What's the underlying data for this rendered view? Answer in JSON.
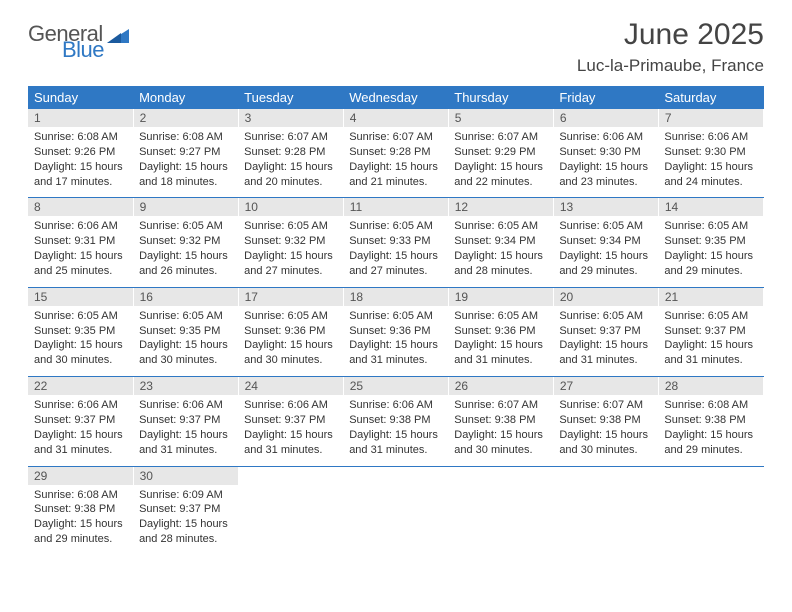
{
  "logo": {
    "general": "General",
    "blue": "Blue"
  },
  "title": "June 2025",
  "location": "Luc-la-Primaube, France",
  "colors": {
    "header_bg": "#2f78c4",
    "header_text": "#ffffff",
    "daynum_bg": "#e7e7e7",
    "text": "#333333",
    "logo_gray": "#555555",
    "logo_blue": "#2f78c4",
    "page_bg": "#ffffff"
  },
  "typography": {
    "title_fontsize": 30,
    "location_fontsize": 17,
    "dow_fontsize": 13,
    "daynum_fontsize": 12,
    "detail_fontsize": 11
  },
  "dow": [
    "Sunday",
    "Monday",
    "Tuesday",
    "Wednesday",
    "Thursday",
    "Friday",
    "Saturday"
  ],
  "weeks": [
    [
      {
        "n": "1",
        "sr": "Sunrise: 6:08 AM",
        "ss": "Sunset: 9:26 PM",
        "d1": "Daylight: 15 hours",
        "d2": "and 17 minutes."
      },
      {
        "n": "2",
        "sr": "Sunrise: 6:08 AM",
        "ss": "Sunset: 9:27 PM",
        "d1": "Daylight: 15 hours",
        "d2": "and 18 minutes."
      },
      {
        "n": "3",
        "sr": "Sunrise: 6:07 AM",
        "ss": "Sunset: 9:28 PM",
        "d1": "Daylight: 15 hours",
        "d2": "and 20 minutes."
      },
      {
        "n": "4",
        "sr": "Sunrise: 6:07 AM",
        "ss": "Sunset: 9:28 PM",
        "d1": "Daylight: 15 hours",
        "d2": "and 21 minutes."
      },
      {
        "n": "5",
        "sr": "Sunrise: 6:07 AM",
        "ss": "Sunset: 9:29 PM",
        "d1": "Daylight: 15 hours",
        "d2": "and 22 minutes."
      },
      {
        "n": "6",
        "sr": "Sunrise: 6:06 AM",
        "ss": "Sunset: 9:30 PM",
        "d1": "Daylight: 15 hours",
        "d2": "and 23 minutes."
      },
      {
        "n": "7",
        "sr": "Sunrise: 6:06 AM",
        "ss": "Sunset: 9:30 PM",
        "d1": "Daylight: 15 hours",
        "d2": "and 24 minutes."
      }
    ],
    [
      {
        "n": "8",
        "sr": "Sunrise: 6:06 AM",
        "ss": "Sunset: 9:31 PM",
        "d1": "Daylight: 15 hours",
        "d2": "and 25 minutes."
      },
      {
        "n": "9",
        "sr": "Sunrise: 6:05 AM",
        "ss": "Sunset: 9:32 PM",
        "d1": "Daylight: 15 hours",
        "d2": "and 26 minutes."
      },
      {
        "n": "10",
        "sr": "Sunrise: 6:05 AM",
        "ss": "Sunset: 9:32 PM",
        "d1": "Daylight: 15 hours",
        "d2": "and 27 minutes."
      },
      {
        "n": "11",
        "sr": "Sunrise: 6:05 AM",
        "ss": "Sunset: 9:33 PM",
        "d1": "Daylight: 15 hours",
        "d2": "and 27 minutes."
      },
      {
        "n": "12",
        "sr": "Sunrise: 6:05 AM",
        "ss": "Sunset: 9:34 PM",
        "d1": "Daylight: 15 hours",
        "d2": "and 28 minutes."
      },
      {
        "n": "13",
        "sr": "Sunrise: 6:05 AM",
        "ss": "Sunset: 9:34 PM",
        "d1": "Daylight: 15 hours",
        "d2": "and 29 minutes."
      },
      {
        "n": "14",
        "sr": "Sunrise: 6:05 AM",
        "ss": "Sunset: 9:35 PM",
        "d1": "Daylight: 15 hours",
        "d2": "and 29 minutes."
      }
    ],
    [
      {
        "n": "15",
        "sr": "Sunrise: 6:05 AM",
        "ss": "Sunset: 9:35 PM",
        "d1": "Daylight: 15 hours",
        "d2": "and 30 minutes."
      },
      {
        "n": "16",
        "sr": "Sunrise: 6:05 AM",
        "ss": "Sunset: 9:35 PM",
        "d1": "Daylight: 15 hours",
        "d2": "and 30 minutes."
      },
      {
        "n": "17",
        "sr": "Sunrise: 6:05 AM",
        "ss": "Sunset: 9:36 PM",
        "d1": "Daylight: 15 hours",
        "d2": "and 30 minutes."
      },
      {
        "n": "18",
        "sr": "Sunrise: 6:05 AM",
        "ss": "Sunset: 9:36 PM",
        "d1": "Daylight: 15 hours",
        "d2": "and 31 minutes."
      },
      {
        "n": "19",
        "sr": "Sunrise: 6:05 AM",
        "ss": "Sunset: 9:36 PM",
        "d1": "Daylight: 15 hours",
        "d2": "and 31 minutes."
      },
      {
        "n": "20",
        "sr": "Sunrise: 6:05 AM",
        "ss": "Sunset: 9:37 PM",
        "d1": "Daylight: 15 hours",
        "d2": "and 31 minutes."
      },
      {
        "n": "21",
        "sr": "Sunrise: 6:05 AM",
        "ss": "Sunset: 9:37 PM",
        "d1": "Daylight: 15 hours",
        "d2": "and 31 minutes."
      }
    ],
    [
      {
        "n": "22",
        "sr": "Sunrise: 6:06 AM",
        "ss": "Sunset: 9:37 PM",
        "d1": "Daylight: 15 hours",
        "d2": "and 31 minutes."
      },
      {
        "n": "23",
        "sr": "Sunrise: 6:06 AM",
        "ss": "Sunset: 9:37 PM",
        "d1": "Daylight: 15 hours",
        "d2": "and 31 minutes."
      },
      {
        "n": "24",
        "sr": "Sunrise: 6:06 AM",
        "ss": "Sunset: 9:37 PM",
        "d1": "Daylight: 15 hours",
        "d2": "and 31 minutes."
      },
      {
        "n": "25",
        "sr": "Sunrise: 6:06 AM",
        "ss": "Sunset: 9:38 PM",
        "d1": "Daylight: 15 hours",
        "d2": "and 31 minutes."
      },
      {
        "n": "26",
        "sr": "Sunrise: 6:07 AM",
        "ss": "Sunset: 9:38 PM",
        "d1": "Daylight: 15 hours",
        "d2": "and 30 minutes."
      },
      {
        "n": "27",
        "sr": "Sunrise: 6:07 AM",
        "ss": "Sunset: 9:38 PM",
        "d1": "Daylight: 15 hours",
        "d2": "and 30 minutes."
      },
      {
        "n": "28",
        "sr": "Sunrise: 6:08 AM",
        "ss": "Sunset: 9:38 PM",
        "d1": "Daylight: 15 hours",
        "d2": "and 29 minutes."
      }
    ],
    [
      {
        "n": "29",
        "sr": "Sunrise: 6:08 AM",
        "ss": "Sunset: 9:38 PM",
        "d1": "Daylight: 15 hours",
        "d2": "and 29 minutes."
      },
      {
        "n": "30",
        "sr": "Sunrise: 6:09 AM",
        "ss": "Sunset: 9:37 PM",
        "d1": "Daylight: 15 hours",
        "d2": "and 28 minutes."
      },
      null,
      null,
      null,
      null,
      null
    ]
  ]
}
